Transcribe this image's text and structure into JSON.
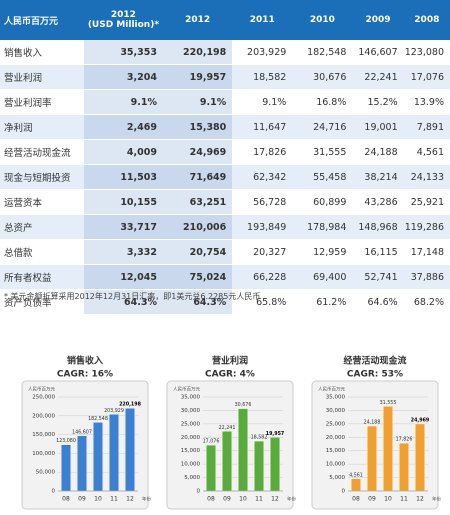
{
  "table": {
    "header": [
      "人民币百万元",
      "2012\n(USD Million)*",
      "2012",
      "2011",
      "2010",
      "2009",
      "2008"
    ],
    "rows": [
      [
        "销售收入",
        "35,353",
        "220,198",
        "203,929",
        "182,548",
        "146,607",
        "123,080"
      ],
      [
        "营业利润",
        "3,204",
        "19,957",
        "18,582",
        "30,676",
        "22,241",
        "17,076"
      ],
      [
        "营业利润率",
        "9.1%",
        "9.1%",
        "9.1%",
        "16.8%",
        "15.2%",
        "13.9%"
      ],
      [
        "净利润",
        "2,469",
        "15,380",
        "11,647",
        "24,716",
        "19,001",
        "7,891"
      ],
      [
        "经营活动现金流",
        "4,009",
        "24,969",
        "17,826",
        "31,555",
        "24,188",
        "4,561"
      ],
      [
        "现金与短期投资",
        "11,503",
        "71,649",
        "62,342",
        "55,458",
        "38,214",
        "24,133"
      ],
      [
        "运营资本",
        "10,155",
        "63,251",
        "56,728",
        "60,899",
        "43,286",
        "25,921"
      ],
      [
        "总资产",
        "33,717",
        "210,006",
        "193,849",
        "178,984",
        "148,968",
        "119,286"
      ],
      [
        "总借款",
        "3,332",
        "20,754",
        "20,327",
        "12,959",
        "16,115",
        "17,148"
      ],
      [
        "所有者权益",
        "12,045",
        "75,024",
        "66,228",
        "69,400",
        "52,741",
        "37,886"
      ],
      [
        "资产负债率",
        "64.3%",
        "64.3%",
        "65.8%",
        "61.2%",
        "64.6%",
        "68.2%"
      ]
    ]
  },
  "footnote": "* 美元金额折算采用2012年12月31日汇率，即1美元兑6.2285元人民币",
  "charts": [
    {
      "title": "销售收入",
      "subtitle": "CAGR: 16%",
      "unit": "人民币百万元",
      "x_label": "年份",
      "color": "#3d7fd0",
      "categories": [
        "08",
        "09",
        "10",
        "11",
        "12"
      ],
      "values": [
        123080,
        146607,
        182548,
        203929,
        220198
      ],
      "value_labels": [
        "123,080",
        "146,607",
        "182,548",
        "203,929",
        "220,198"
      ],
      "ylim": [
        0,
        250000
      ],
      "yticks": [
        0,
        {
          "value": 50000,
          "label": "50,000"
        },
        {
          "value": 100000,
          "label": "100,000"
        },
        {
          "value": 150000,
          "label": "150,000"
        },
        {
          "value": 200000,
          "label": "200,000"
        },
        {
          "value": 250000,
          "label": "250,000"
        }
      ]
    },
    {
      "title": "营业利润",
      "subtitle": "CAGR: 4%",
      "unit": "人民币百万元",
      "x_label": "年份",
      "color": "#5aac3a",
      "categories": [
        "08",
        "09",
        "10",
        "11",
        "12"
      ],
      "values": [
        17076,
        22241,
        30676,
        18582,
        19957
      ],
      "value_labels": [
        "17,076",
        "22,241",
        "30,676",
        "18,582",
        "19,957"
      ],
      "ylim": [
        0,
        35000
      ],
      "yticks": [
        0,
        {
          "value": 5000,
          "label": "5,000"
        },
        {
          "value": 10000,
          "label": "10,000"
        },
        {
          "value": 15000,
          "label": "15,000"
        },
        {
          "value": 20000,
          "label": "20,000"
        },
        {
          "value": 25000,
          "label": "25,000"
        },
        {
          "value": 30000,
          "label": "30,000"
        },
        {
          "value": 35000,
          "label": "35,000"
        }
      ]
    },
    {
      "title": "经营活动现金流",
      "subtitle": "CAGR: 53%",
      "unit": "人民币百万元",
      "x_label": "年份",
      "color": "#f0a030",
      "categories": [
        "08",
        "09",
        "10",
        "11",
        "12"
      ],
      "values": [
        4561,
        24188,
        31555,
        17826,
        24969
      ],
      "value_labels": [
        "4,561",
        "24,188",
        "31,555",
        "17,826",
        "24,969"
      ],
      "ylim": [
        0,
        35000
      ],
      "yticks": [
        0,
        {
          "value": 5000,
          "label": "5,000"
        },
        {
          "value": 10000,
          "label": "10,000"
        },
        {
          "value": 15000,
          "label": "15,000"
        },
        {
          "value": 20000,
          "label": "20,000"
        },
        {
          "value": 25000,
          "label": "25,000"
        },
        {
          "value": 30000,
          "label": "30,000"
        },
        {
          "value": 35000,
          "label": "35,000"
        }
      ]
    }
  ]
}
